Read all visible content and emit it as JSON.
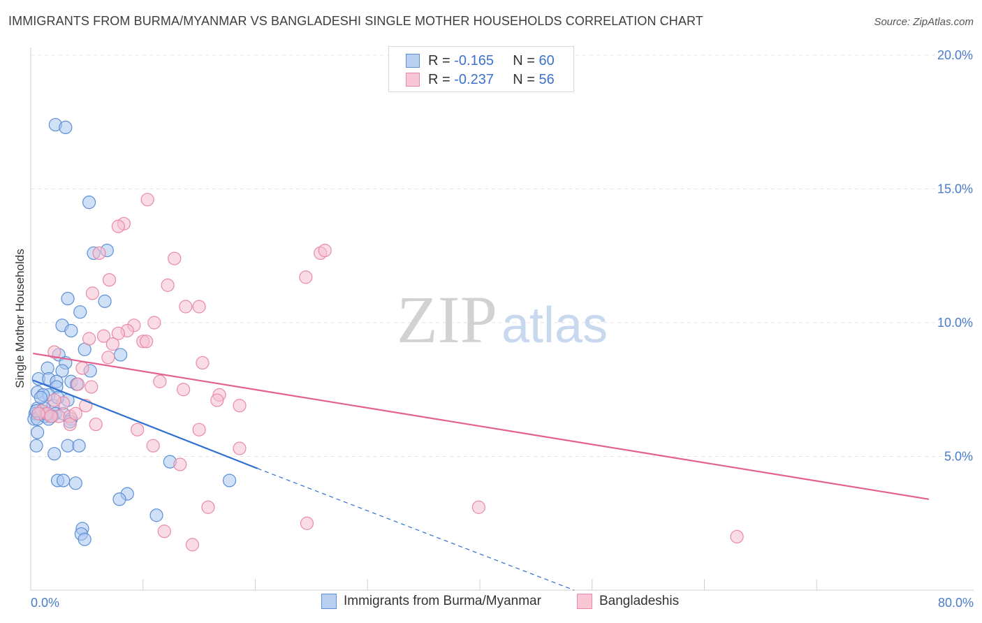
{
  "title": "IMMIGRANTS FROM BURMA/MYANMAR VS BANGLADESHI SINGLE MOTHER HOUSEHOLDS CORRELATION CHART",
  "source": "Source: ZipAtlas.com",
  "watermark": {
    "zip": "ZIP",
    "atlas": "atlas"
  },
  "colors": {
    "blue_fill": "#a9c6ef",
    "blue_stroke": "#5b8fd6",
    "blue_line": "#2f6fd0",
    "pink_fill": "#f6bfd0",
    "pink_stroke": "#e88aa8",
    "pink_line": "#e4608e",
    "tick": "#4a7cc9",
    "grid": "#e3e3e3"
  },
  "legend": {
    "rows": [
      {
        "r_label": "R =",
        "r_value": "-0.165",
        "n_label": "N =",
        "n_value": "60"
      },
      {
        "r_label": "R =",
        "r_value": "-0.237",
        "n_label": "N =",
        "n_value": "56"
      }
    ]
  },
  "bottom_legend": [
    "Immigrants from Burma/Myanmar",
    "Bangladeshis"
  ],
  "chart_data": {
    "type": "scatter",
    "title": "IMMIGRANTS FROM BURMA/MYANMAR VS BANGLADESHI SINGLE MOTHER HOUSEHOLDS CORRELATION CHART",
    "xlabel": "",
    "ylabel": "Single Mother Households",
    "xlim": [
      0,
      80
    ],
    "ylim": [
      0,
      20
    ],
    "x_tick_labels": [
      "0.0%",
      "80.0%"
    ],
    "y_ticks": [
      5,
      10,
      15,
      20
    ],
    "y_tick_labels": [
      "5.0%",
      "10.0%",
      "15.0%",
      "20.0%"
    ],
    "grid": true,
    "series": [
      {
        "name": "Immigrants from Burma/Myanmar",
        "color": "blue",
        "r": -0.165,
        "n": 60,
        "trend": {
          "x0": 0.2,
          "y0": 7.85,
          "x1": 20.2,
          "y1": 4.55,
          "dash_x1": 48.4,
          "dash_y1": 0.0
        },
        "points": [
          [
            2.2,
            17.4
          ],
          [
            3.1,
            17.3
          ],
          [
            5.2,
            14.5
          ],
          [
            5.6,
            12.6
          ],
          [
            6.8,
            12.7
          ],
          [
            3.3,
            10.9
          ],
          [
            6.6,
            10.8
          ],
          [
            4.4,
            10.4
          ],
          [
            2.8,
            9.9
          ],
          [
            3.6,
            9.7
          ],
          [
            4.8,
            9.0
          ],
          [
            2.5,
            8.8
          ],
          [
            8.0,
            8.8
          ],
          [
            1.5,
            8.3
          ],
          [
            3.1,
            8.5
          ],
          [
            5.3,
            8.2
          ],
          [
            2.8,
            8.2
          ],
          [
            0.7,
            7.9
          ],
          [
            1.6,
            7.9
          ],
          [
            2.3,
            7.8
          ],
          [
            3.6,
            7.8
          ],
          [
            4.1,
            7.7
          ],
          [
            2.3,
            7.6
          ],
          [
            0.6,
            7.4
          ],
          [
            1.6,
            7.3
          ],
          [
            1.1,
            7.3
          ],
          [
            3.3,
            7.1
          ],
          [
            2.0,
            6.9
          ],
          [
            0.6,
            6.8
          ],
          [
            1.2,
            6.8
          ],
          [
            0.4,
            6.6
          ],
          [
            2.2,
            6.6
          ],
          [
            2.9,
            6.6
          ],
          [
            0.3,
            6.4
          ],
          [
            0.6,
            6.4
          ],
          [
            1.3,
            6.5
          ],
          [
            1.6,
            6.4
          ],
          [
            3.6,
            6.4
          ],
          [
            3.5,
            6.3
          ],
          [
            0.6,
            5.9
          ],
          [
            0.5,
            5.4
          ],
          [
            3.3,
            5.4
          ],
          [
            4.3,
            5.4
          ],
          [
            2.1,
            5.1
          ],
          [
            12.4,
            4.8
          ],
          [
            2.4,
            4.1
          ],
          [
            2.9,
            4.1
          ],
          [
            4.0,
            4.0
          ],
          [
            17.7,
            4.1
          ],
          [
            8.6,
            3.6
          ],
          [
            7.9,
            3.4
          ],
          [
            11.2,
            2.8
          ],
          [
            4.6,
            2.3
          ],
          [
            4.5,
            2.1
          ],
          [
            4.8,
            1.9
          ],
          [
            0.5,
            6.7
          ],
          [
            1.9,
            6.5
          ],
          [
            0.9,
            7.2
          ],
          [
            2.4,
            7.2
          ],
          [
            1.4,
            6.6
          ]
        ]
      },
      {
        "name": "Bangladeshis",
        "color": "pink",
        "r": -0.237,
        "n": 56,
        "trend": {
          "x0": 0.2,
          "y0": 8.85,
          "x1": 80.0,
          "y1": 3.4
        },
        "points": [
          [
            10.4,
            14.6
          ],
          [
            8.3,
            13.7
          ],
          [
            7.8,
            13.6
          ],
          [
            6.1,
            12.6
          ],
          [
            25.8,
            12.6
          ],
          [
            26.2,
            12.7
          ],
          [
            12.8,
            12.4
          ],
          [
            7.0,
            11.6
          ],
          [
            24.5,
            11.7
          ],
          [
            12.2,
            11.4
          ],
          [
            5.5,
            11.1
          ],
          [
            13.8,
            10.6
          ],
          [
            15.0,
            10.6
          ],
          [
            11.0,
            10.0
          ],
          [
            9.2,
            9.9
          ],
          [
            8.6,
            9.7
          ],
          [
            7.8,
            9.6
          ],
          [
            6.5,
            9.5
          ],
          [
            5.2,
            9.4
          ],
          [
            10.0,
            9.3
          ],
          [
            10.3,
            9.3
          ],
          [
            7.3,
            9.2
          ],
          [
            6.9,
            8.7
          ],
          [
            2.1,
            8.9
          ],
          [
            15.3,
            8.5
          ],
          [
            4.6,
            8.3
          ],
          [
            11.5,
            7.8
          ],
          [
            4.2,
            7.7
          ],
          [
            5.4,
            7.6
          ],
          [
            13.6,
            7.5
          ],
          [
            16.8,
            7.3
          ],
          [
            16.6,
            7.1
          ],
          [
            2.9,
            7.0
          ],
          [
            2.1,
            7.1
          ],
          [
            18.6,
            6.9
          ],
          [
            4.9,
            6.9
          ],
          [
            1.0,
            6.7
          ],
          [
            1.5,
            6.6
          ],
          [
            0.7,
            6.6
          ],
          [
            2.5,
            6.5
          ],
          [
            3.5,
            6.5
          ],
          [
            1.8,
            6.5
          ],
          [
            3.5,
            6.2
          ],
          [
            5.8,
            6.2
          ],
          [
            9.5,
            6.0
          ],
          [
            15.0,
            6.0
          ],
          [
            10.9,
            5.4
          ],
          [
            18.6,
            5.3
          ],
          [
            13.3,
            4.7
          ],
          [
            39.9,
            3.1
          ],
          [
            15.8,
            3.1
          ],
          [
            24.6,
            2.5
          ],
          [
            11.9,
            2.2
          ],
          [
            62.9,
            2.0
          ],
          [
            14.4,
            1.7
          ],
          [
            4.0,
            6.6
          ]
        ]
      }
    ]
  }
}
